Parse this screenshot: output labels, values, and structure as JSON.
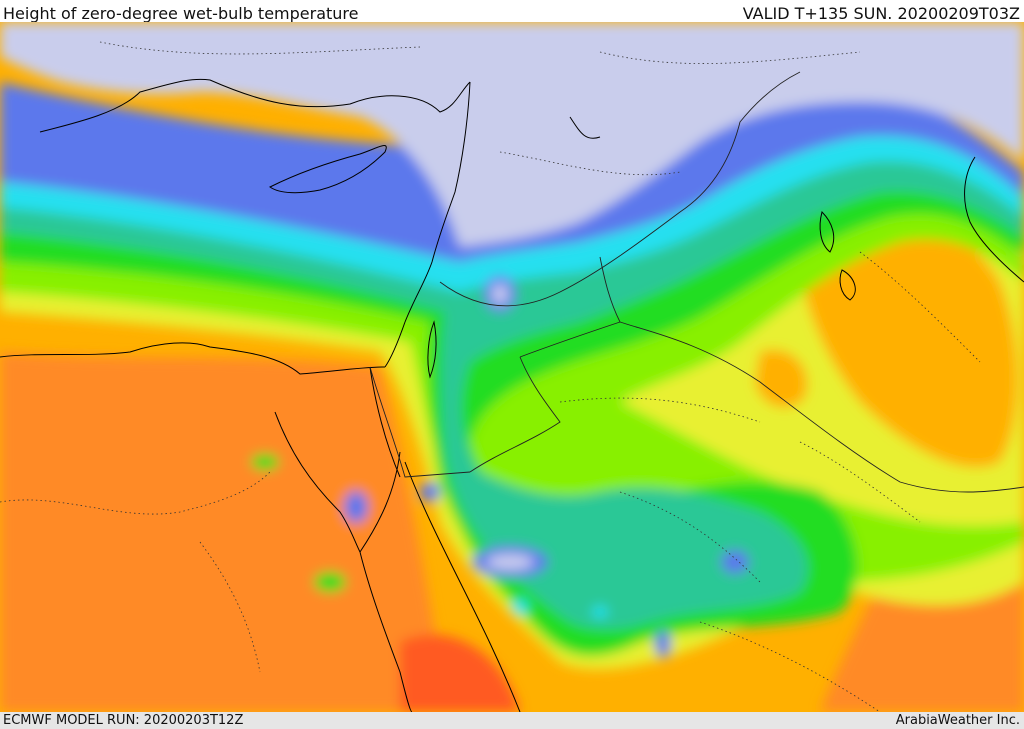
{
  "header": {
    "title": "Height of zero-degree wet-bulb temperature",
    "valid": "VALID T+135 SUN. 20200209T03Z"
  },
  "footer": {
    "model_run": "ECMWF MODEL RUN: 20200203T12Z",
    "credit": "ArabiaWeather Inc."
  },
  "colors": {
    "lowest": "#c9cdec",
    "blue": "#5b78ec",
    "cyan": "#28e0f0",
    "teal": "#2cc896",
    "green": "#22dd22",
    "lime": "#88f000",
    "yellow": "#e8f030",
    "orange": "#ffb000",
    "dark_orange": "#ff8a28",
    "red_orange": "#ff5a20"
  }
}
